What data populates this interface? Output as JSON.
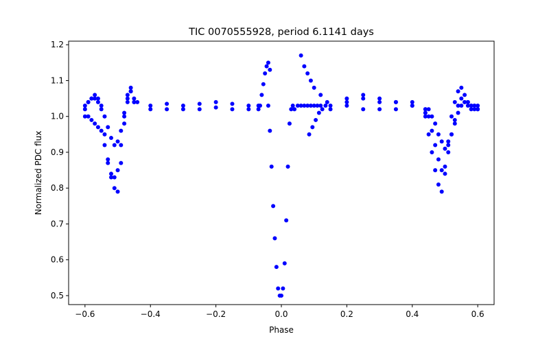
{
  "chart_data": {
    "type": "scatter",
    "title": "TIC 0070555928, period 6.1141 days",
    "xlabel": "Phase",
    "ylabel": "Normalized PDC flux",
    "xlim": [
      -0.65,
      0.65
    ],
    "ylim": [
      0.475,
      1.21
    ],
    "xticks": [
      -0.6,
      -0.4,
      -0.2,
      0.0,
      0.2,
      0.4,
      0.6
    ],
    "xtick_labels": [
      "−0.6",
      "−0.4",
      "−0.2",
      "0.0",
      "0.2",
      "0.4",
      "0.6"
    ],
    "yticks": [
      0.5,
      0.6,
      0.7,
      0.8,
      0.9,
      1.0,
      1.1,
      1.2
    ],
    "ytick_labels": [
      "0.5",
      "0.6",
      "0.7",
      "0.8",
      "0.9",
      "1.0",
      "1.1",
      "1.2"
    ],
    "grid": false,
    "marker_color": "#0000ff",
    "points": {
      "x": [
        -0.6,
        -0.59,
        -0.58,
        -0.57,
        -0.56,
        -0.55,
        -0.54,
        -0.53,
        -0.52,
        -0.51,
        -0.5,
        -0.49,
        -0.48,
        -0.47,
        -0.46,
        -0.45,
        -0.44,
        -0.6,
        -0.59,
        -0.58,
        -0.57,
        -0.56,
        -0.55,
        -0.54,
        -0.53,
        -0.52,
        -0.51,
        -0.5,
        -0.49,
        -0.48,
        -0.47,
        -0.46,
        -0.45,
        -0.6,
        -0.59,
        -0.58,
        -0.57,
        -0.56,
        -0.55,
        -0.54,
        -0.53,
        -0.52,
        -0.51,
        -0.5,
        -0.49,
        -0.48,
        -0.47,
        -0.46,
        -0.45,
        -0.4,
        -0.35,
        -0.3,
        -0.25,
        -0.2,
        -0.15,
        -0.1,
        -0.07,
        -0.4,
        -0.35,
        -0.3,
        -0.25,
        -0.2,
        -0.15,
        -0.1,
        -0.07,
        -0.065,
        -0.06,
        -0.055,
        -0.05,
        -0.045,
        -0.04,
        -0.035,
        -0.04,
        -0.035,
        -0.03,
        -0.025,
        -0.02,
        -0.015,
        -0.01,
        -0.005,
        0.0,
        0.005,
        0.01,
        0.015,
        0.02,
        0.025,
        0.03,
        0.035,
        0.04,
        0.05,
        0.06,
        0.07,
        0.08,
        0.09,
        0.1,
        0.11,
        0.12,
        0.06,
        0.07,
        0.08,
        0.09,
        0.1,
        0.12,
        0.14,
        0.085,
        0.095,
        0.105,
        0.115,
        0.125,
        0.135,
        0.15,
        0.2,
        0.25,
        0.3,
        0.35,
        0.4,
        0.44,
        0.15,
        0.2,
        0.25,
        0.3,
        0.35,
        0.4,
        0.44,
        0.2,
        0.25,
        0.3,
        0.35,
        0.4,
        0.44,
        0.45,
        0.46,
        0.47,
        0.48,
        0.49,
        0.5,
        0.51,
        0.52,
        0.53,
        0.54,
        0.55,
        0.56,
        0.57,
        0.58,
        0.59,
        0.6,
        0.44,
        0.45,
        0.46,
        0.47,
        0.48,
        0.49,
        0.5,
        0.51,
        0.52,
        0.53,
        0.54,
        0.55,
        0.56,
        0.57,
        0.58,
        0.59,
        0.6,
        0.44,
        0.45,
        0.46,
        0.47,
        0.48,
        0.49,
        0.5,
        0.51,
        0.52,
        0.53,
        0.54,
        0.55,
        0.56,
        0.57,
        0.58,
        0.59,
        0.6
      ],
      "y": [
        1.02,
        1.04,
        1.05,
        1.05,
        1.04,
        1.02,
        0.95,
        0.88,
        0.83,
        0.8,
        0.79,
        0.87,
        0.98,
        1.06,
        1.08,
        1.05,
        1.04,
        1.0,
        1.0,
        0.99,
        0.98,
        0.97,
        0.96,
        0.92,
        0.87,
        0.84,
        0.83,
        0.85,
        0.92,
        1.0,
        1.04,
        1.07,
        1.04,
        1.03,
        1.04,
        1.05,
        1.06,
        1.05,
        1.03,
        1.0,
        0.97,
        0.94,
        0.92,
        0.93,
        0.96,
        1.01,
        1.05,
        1.07,
        1.04,
        1.03,
        1.035,
        1.03,
        1.035,
        1.04,
        1.035,
        1.03,
        1.03,
        1.02,
        1.02,
        1.02,
        1.02,
        1.025,
        1.02,
        1.02,
        1.02,
        1.03,
        1.06,
        1.09,
        1.12,
        1.14,
        1.15,
        1.13,
        1.03,
        0.96,
        0.86,
        0.75,
        0.66,
        0.58,
        0.52,
        0.5,
        0.5,
        0.52,
        0.59,
        0.71,
        0.86,
        0.98,
        1.02,
        1.03,
        1.02,
        1.03,
        1.03,
        1.03,
        1.03,
        1.03,
        1.03,
        1.03,
        1.03,
        1.17,
        1.14,
        1.12,
        1.1,
        1.08,
        1.06,
        1.04,
        0.95,
        0.97,
        0.99,
        1.01,
        1.02,
        1.03,
        1.02,
        1.04,
        1.06,
        1.05,
        1.04,
        1.03,
        1.02,
        1.03,
        1.03,
        1.02,
        1.02,
        1.02,
        1.03,
        1.01,
        1.05,
        1.05,
        1.04,
        1.04,
        1.04,
        1.0,
        0.95,
        0.9,
        0.85,
        0.81,
        0.79,
        0.84,
        0.93,
        1.0,
        1.04,
        1.07,
        1.08,
        1.06,
        1.04,
        1.03,
        1.03,
        1.03,
        1.01,
        1.0,
        0.96,
        0.92,
        0.88,
        0.85,
        0.86,
        0.9,
        0.95,
        0.99,
        1.03,
        1.05,
        1.04,
        1.03,
        1.02,
        1.02,
        1.02,
        1.02,
        1.02,
        1.0,
        0.98,
        0.95,
        0.93,
        0.91,
        0.92,
        0.95,
        0.98,
        1.01,
        1.03,
        1.04,
        1.04,
        1.03,
        1.03,
        1.02
      ]
    }
  }
}
